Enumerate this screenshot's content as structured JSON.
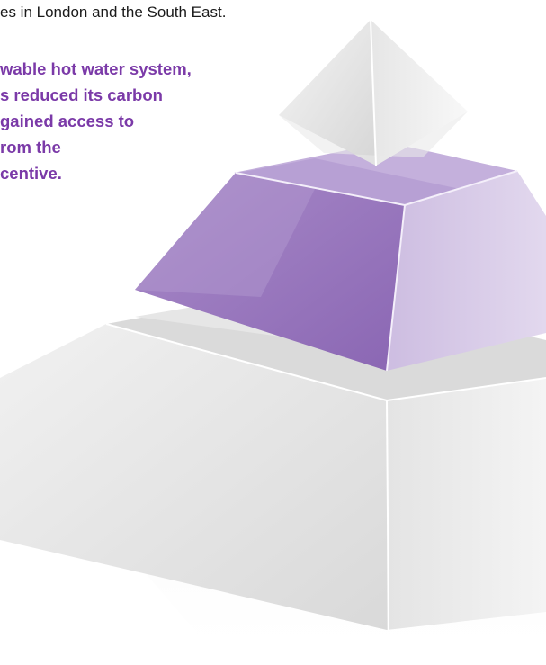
{
  "intro_text": "es in London and the South East.",
  "callout": {
    "lines": [
      "wable hot water system,",
      "s reduced its carbon",
      "gained access to",
      "rom the",
      "centive."
    ]
  },
  "graphic": {
    "description_icon": "pyramid-graphic",
    "accent_color": "#9b7cc0",
    "callout_color": "#7b3aa8"
  }
}
